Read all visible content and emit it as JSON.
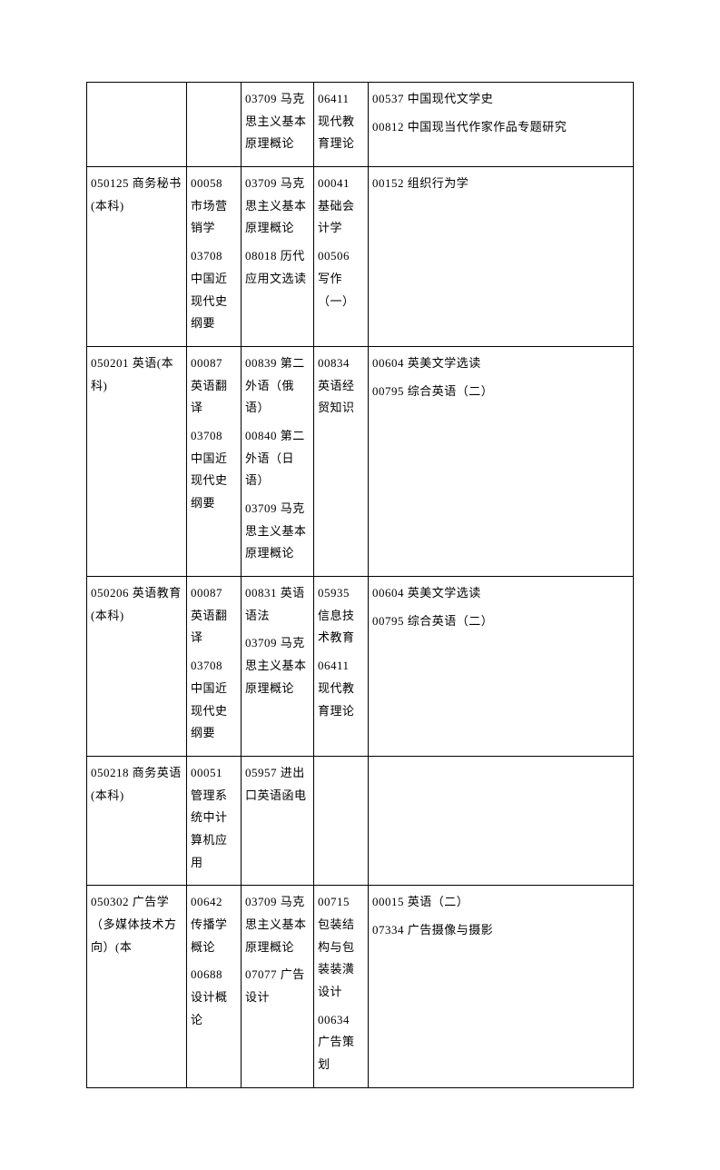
{
  "rows": [
    {
      "c1": "",
      "c2": "",
      "c3": [
        "03709 马克思主义基本原理概论"
      ],
      "c4": [
        "06411 现代教育理论"
      ],
      "c5": [
        "00537 中国现代文学史",
        "00812 中国现当代作家作品专题研究"
      ]
    },
    {
      "c1": "050125  商务秘书(本科)",
      "c2": [
        "00058 市场营销学",
        "03708 中国近现代史纲要"
      ],
      "c3": [
        "03709 马克思主义基本原理概论",
        "08018 历代应用文选读"
      ],
      "c4": [
        "00041 基础会计学",
        "00506 写作（一）"
      ],
      "c5": [
        "00152 组织行为学"
      ]
    },
    {
      "c1": "050201  英语(本科)",
      "c2": [
        "00087 英语翻译",
        "03708 中国近现代史纲要"
      ],
      "c3": [
        "00839 第二外语（俄语）",
        "00840 第二外语（日语）",
        "03709 马克思主义基本原理概论"
      ],
      "c4": [
        "00834 英语经贸知识"
      ],
      "c5": [
        "00604 英美文学选读",
        "00795 综合英语（二）"
      ]
    },
    {
      "c1": "050206  英语教育(本科)",
      "c2": [
        "00087 英语翻译",
        "03708 中国近现代史纲要"
      ],
      "c3": [
        "00831 英语语法",
        "03709 马克思主义基本原理概论"
      ],
      "c4": [
        "05935 信息技术教育",
        "06411 现代教育理论"
      ],
      "c5": [
        "00604 英美文学选读",
        "00795 综合英语（二）"
      ]
    },
    {
      "c1": "050218  商务英语(本科)",
      "c2": [
        "00051 管理系统中计算机应用"
      ],
      "c3": [
        "05957 进出口英语函电"
      ],
      "c4": [
        ""
      ],
      "c5": [
        ""
      ]
    },
    {
      "c1": "050302  广告学（多媒体技术方向）(本",
      "c2": [
        "00642 传播学概论",
        "00688 设计概论"
      ],
      "c3": [
        "03709 马克思主义基本原理概论",
        "07077 广告设计"
      ],
      "c4": [
        "00715 包装结构与包装装潢设计",
        "00634 广告策划"
      ],
      "c5": [
        "00015 英语（二）",
        "07334 广告摄像与摄影"
      ]
    }
  ]
}
